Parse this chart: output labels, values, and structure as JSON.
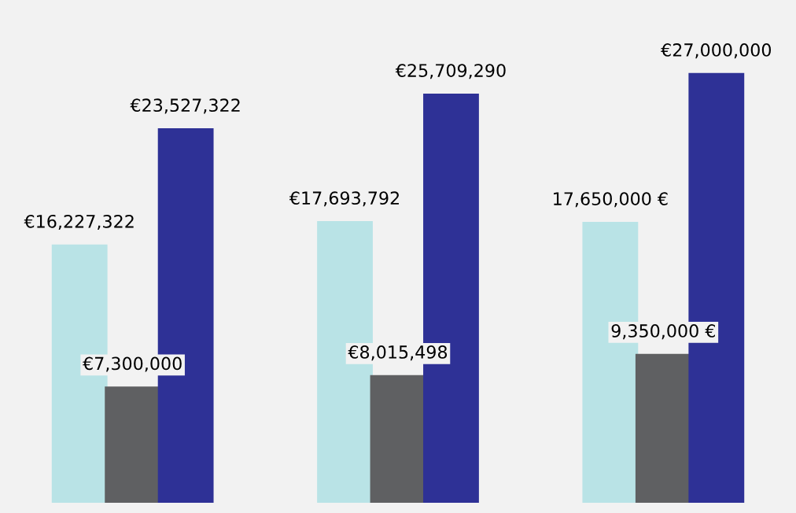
{
  "chart_data": {
    "type": "bar",
    "categories": [
      null,
      null,
      null
    ],
    "series": [
      {
        "color": "#b9e3e6",
        "values": [
          16227322,
          17693792,
          17650000
        ],
        "value_labels": [
          "€16,227,322",
          "€17,693,792",
          "17,650,000 €"
        ]
      },
      {
        "color": "#5f6062",
        "values": [
          7300000,
          8015498,
          9350000
        ],
        "value_labels": [
          "€7,300,000",
          "€8,015,498",
          "9,350,000 €"
        ]
      },
      {
        "color": "#2e3196",
        "values": [
          23527322,
          25709290,
          27000000
        ],
        "value_labels": [
          "€23,527,322",
          "€25,709,290",
          "€27,000,000"
        ]
      }
    ],
    "grid": false,
    "legend": false
  }
}
